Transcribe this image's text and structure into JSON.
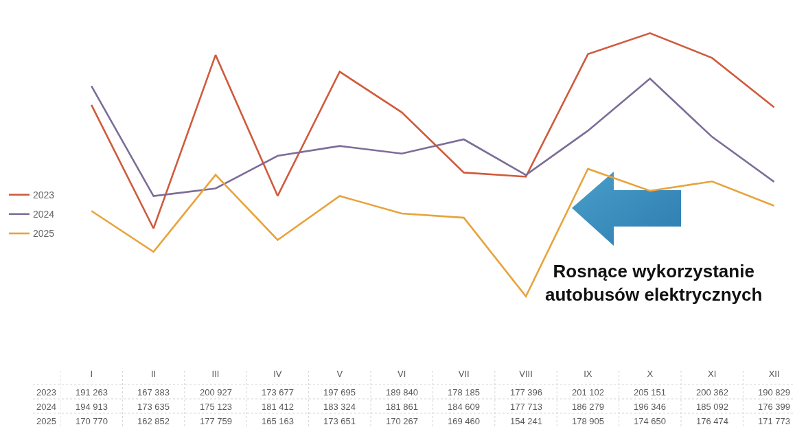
{
  "chart_data": {
    "type": "line",
    "categories": [
      "I",
      "II",
      "III",
      "IV",
      "V",
      "VI",
      "VII",
      "VIII",
      "IX",
      "X",
      "XI",
      "XII"
    ],
    "series": [
      {
        "name": "2023",
        "color": "#d05a3c",
        "values": [
          191263,
          167383,
          200927,
          173677,
          197695,
          189840,
          178185,
          177396,
          201102,
          205151,
          200362,
          190829
        ],
        "value_labels": [
          "191 263",
          "167 383",
          "200 927",
          "173 677",
          "197 695",
          "189 840",
          "178 185",
          "177 396",
          "201 102",
          "205 151",
          "200 362",
          "190 829"
        ]
      },
      {
        "name": "2024",
        "color": "#7c6d98",
        "values": [
          194913,
          173635,
          175123,
          181412,
          183324,
          181861,
          184609,
          177713,
          186279,
          196346,
          185092,
          176399
        ],
        "value_labels": [
          "194 913",
          "173 635",
          "175 123",
          "181 412",
          "183 324",
          "181 861",
          "184 609",
          "177 713",
          "186 279",
          "196 346",
          "185 092",
          "176 399"
        ]
      },
      {
        "name": "2025",
        "color": "#e8a33c",
        "values": [
          170770,
          162852,
          177759,
          165163,
          173651,
          170267,
          169460,
          154241,
          178905,
          174650,
          176474,
          171773
        ],
        "value_labels": [
          "170 770",
          "162 852",
          "177 759",
          "165 163",
          "173 651",
          "170 267",
          "169 460",
          "154 241",
          "178 905",
          "174 650",
          "176 474",
          "171 773"
        ]
      }
    ],
    "annotations": [
      "Rosnące wykorzystanie\nautobusów elektrycznych"
    ],
    "legend": "left",
    "grid": false,
    "marker": "none",
    "line_style": "solid"
  }
}
